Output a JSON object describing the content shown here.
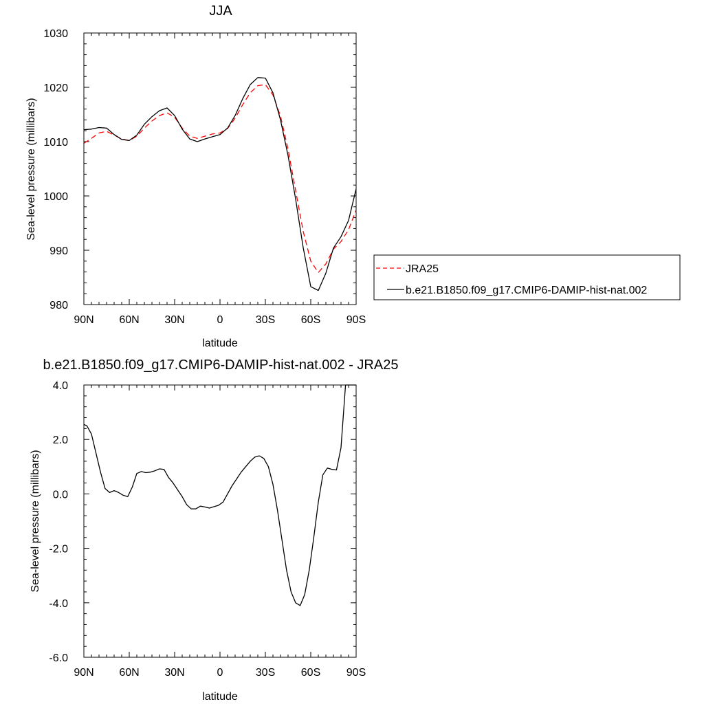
{
  "chart_data": [
    {
      "type": "line",
      "title": "JJA",
      "xlabel": "latitude",
      "ylabel": "Sea-level pressure (millibars)",
      "xlim": [
        -90,
        90
      ],
      "ylim": [
        980,
        1030
      ],
      "xticks": [
        -90,
        -60,
        -30,
        0,
        30,
        60,
        90
      ],
      "xtick_labels": [
        "90N",
        "60N",
        "30N",
        "0",
        "30S",
        "60S",
        "90S"
      ],
      "yticks": [
        980,
        990,
        1000,
        1010,
        1020,
        1030
      ],
      "ytick_labels": [
        "980",
        "990",
        "1000",
        "1010",
        "1020",
        "1030"
      ],
      "grid": false,
      "legend": "right, outside plot",
      "series": [
        {
          "name": "JRA25",
          "color": "#ff0000",
          "dash": "dashed",
          "x": [
            -90,
            -85,
            -80,
            -75,
            -70,
            -65,
            -60,
            -55,
            -50,
            -45,
            -40,
            -35,
            -30,
            -25,
            -20,
            -15,
            -10,
            -5,
            0,
            5,
            10,
            15,
            20,
            25,
            30,
            35,
            40,
            45,
            50,
            55,
            60,
            65,
            70,
            75,
            80,
            85,
            90
          ],
          "y": [
            1009.7,
            1010.6,
            1011.6,
            1011.9,
            1011.2,
            1010.5,
            1010.2,
            1011.0,
            1012.5,
            1013.8,
            1014.8,
            1015.3,
            1014.5,
            1012.5,
            1011.0,
            1010.6,
            1011.0,
            1011.4,
            1011.6,
            1012.4,
            1014.3,
            1016.8,
            1019.0,
            1020.3,
            1020.5,
            1018.6,
            1014.7,
            1008.6,
            1001.0,
            993.5,
            988.0,
            985.9,
            987.5,
            990.2,
            991.6,
            993.8,
            997.4
          ]
        },
        {
          "name": "b.e21.B1850.f09_g17.CMIP6-DAMIP-hist-nat.002",
          "color": "#000000",
          "dash": "solid",
          "x": [
            -90,
            -85,
            -80,
            -75,
            -70,
            -65,
            -60,
            -55,
            -50,
            -45,
            -40,
            -35,
            -30,
            -25,
            -20,
            -15,
            -10,
            -5,
            0,
            5,
            10,
            15,
            20,
            25,
            30,
            35,
            40,
            45,
            50,
            55,
            60,
            65,
            70,
            75,
            80,
            85,
            90
          ],
          "y": [
            1012.2,
            1012.3,
            1012.6,
            1012.5,
            1011.3,
            1010.4,
            1010.2,
            1011.2,
            1013.2,
            1014.6,
            1015.7,
            1016.2,
            1014.8,
            1012.3,
            1010.5,
            1010.0,
            1010.5,
            1010.9,
            1011.3,
            1012.5,
            1014.8,
            1017.9,
            1020.5,
            1021.8,
            1021.7,
            1019.0,
            1014.0,
            1007.4,
            999.4,
            990.5,
            983.3,
            982.6,
            985.8,
            990.4,
            992.5,
            995.5,
            1001.3
          ]
        }
      ]
    },
    {
      "type": "line",
      "title": "b.e21.B1850.f09_g17.CMIP6-DAMIP-hist-nat.002 - JRA25",
      "xlabel": "latitude",
      "ylabel": "Sea-level pressure (millibars)",
      "xlim": [
        -90,
        90
      ],
      "ylim": [
        -6,
        4
      ],
      "xticks": [
        -90,
        -60,
        -30,
        0,
        30,
        60,
        90
      ],
      "xtick_labels": [
        "90N",
        "60N",
        "30N",
        "0",
        "30S",
        "60S",
        "90S"
      ],
      "yticks": [
        -6,
        -4,
        -2,
        0,
        2,
        4
      ],
      "ytick_labels": [
        "-6.0",
        "-4.0",
        "-2.0",
        "0.0",
        "2.0",
        "4.0"
      ],
      "grid": false,
      "series": [
        {
          "color": "#000000",
          "dash": "solid",
          "x": [
            -90,
            -88,
            -85,
            -82,
            -79,
            -76,
            -73,
            -70,
            -67,
            -64,
            -61,
            -58,
            -55,
            -52,
            -49,
            -46,
            -43,
            -40,
            -37,
            -34,
            -31,
            -28,
            -25,
            -22,
            -19,
            -16,
            -13,
            -10,
            -7,
            -4,
            -1,
            2,
            5,
            8,
            11,
            14,
            17,
            20,
            23,
            26,
            29,
            32,
            35,
            38,
            41,
            44,
            47,
            50,
            53,
            56,
            59,
            62,
            65,
            68,
            71,
            74,
            77,
            80,
            83,
            86,
            88,
            90
          ],
          "y": [
            2.55,
            2.5,
            2.2,
            1.5,
            0.8,
            0.2,
            0.05,
            0.12,
            0.05,
            -0.05,
            -0.1,
            0.25,
            0.75,
            0.82,
            0.78,
            0.8,
            0.85,
            0.92,
            0.9,
            0.6,
            0.4,
            0.15,
            -0.1,
            -0.4,
            -0.55,
            -0.55,
            -0.45,
            -0.48,
            -0.52,
            -0.47,
            -0.42,
            -0.3,
            0.0,
            0.3,
            0.55,
            0.8,
            1.0,
            1.2,
            1.35,
            1.4,
            1.3,
            1.0,
            0.35,
            -0.6,
            -1.7,
            -2.8,
            -3.6,
            -4.0,
            -4.1,
            -3.7,
            -2.8,
            -1.6,
            -0.3,
            0.7,
            0.95,
            0.9,
            0.88,
            1.7,
            4.0,
            4.0,
            4.0,
            4.0
          ]
        }
      ]
    }
  ]
}
